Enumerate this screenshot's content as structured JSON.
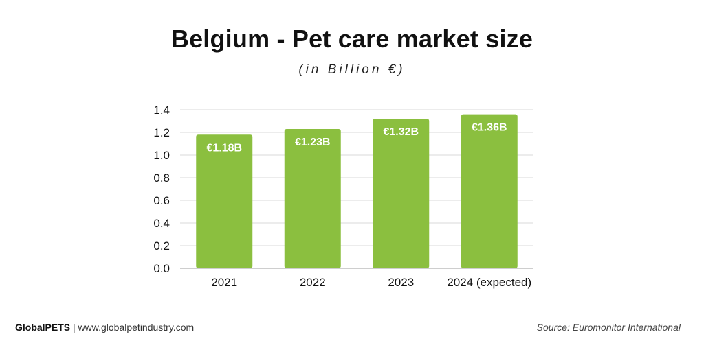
{
  "colors": {
    "bar": "#8bbf3f",
    "grid": "#d9d9d9",
    "axis": "#bdbdbd",
    "label": "#ffffff",
    "text": "#111111"
  },
  "footer": {
    "brand": "GlobalPETS",
    "separator": " | ",
    "website": "www.globalpetindustry.com",
    "source": "Source: Euromonitor International"
  },
  "chart_data": {
    "type": "bar",
    "title": "Belgium - Pet care market size",
    "subtitle": "(in Billion €)",
    "categories": [
      "2021",
      "2022",
      "2023",
      "2024 (expected)"
    ],
    "values": [
      1.18,
      1.23,
      1.32,
      1.36
    ],
    "data_labels": [
      "€1.18B",
      "€1.23B",
      "€1.32B",
      "€1.36B"
    ],
    "ylim": [
      0,
      1.4
    ],
    "yticks": [
      "0.0",
      "0.2",
      "0.4",
      "0.6",
      "0.8",
      "1.0",
      "1.2",
      "1.4"
    ],
    "grid": true,
    "legend": "none"
  }
}
